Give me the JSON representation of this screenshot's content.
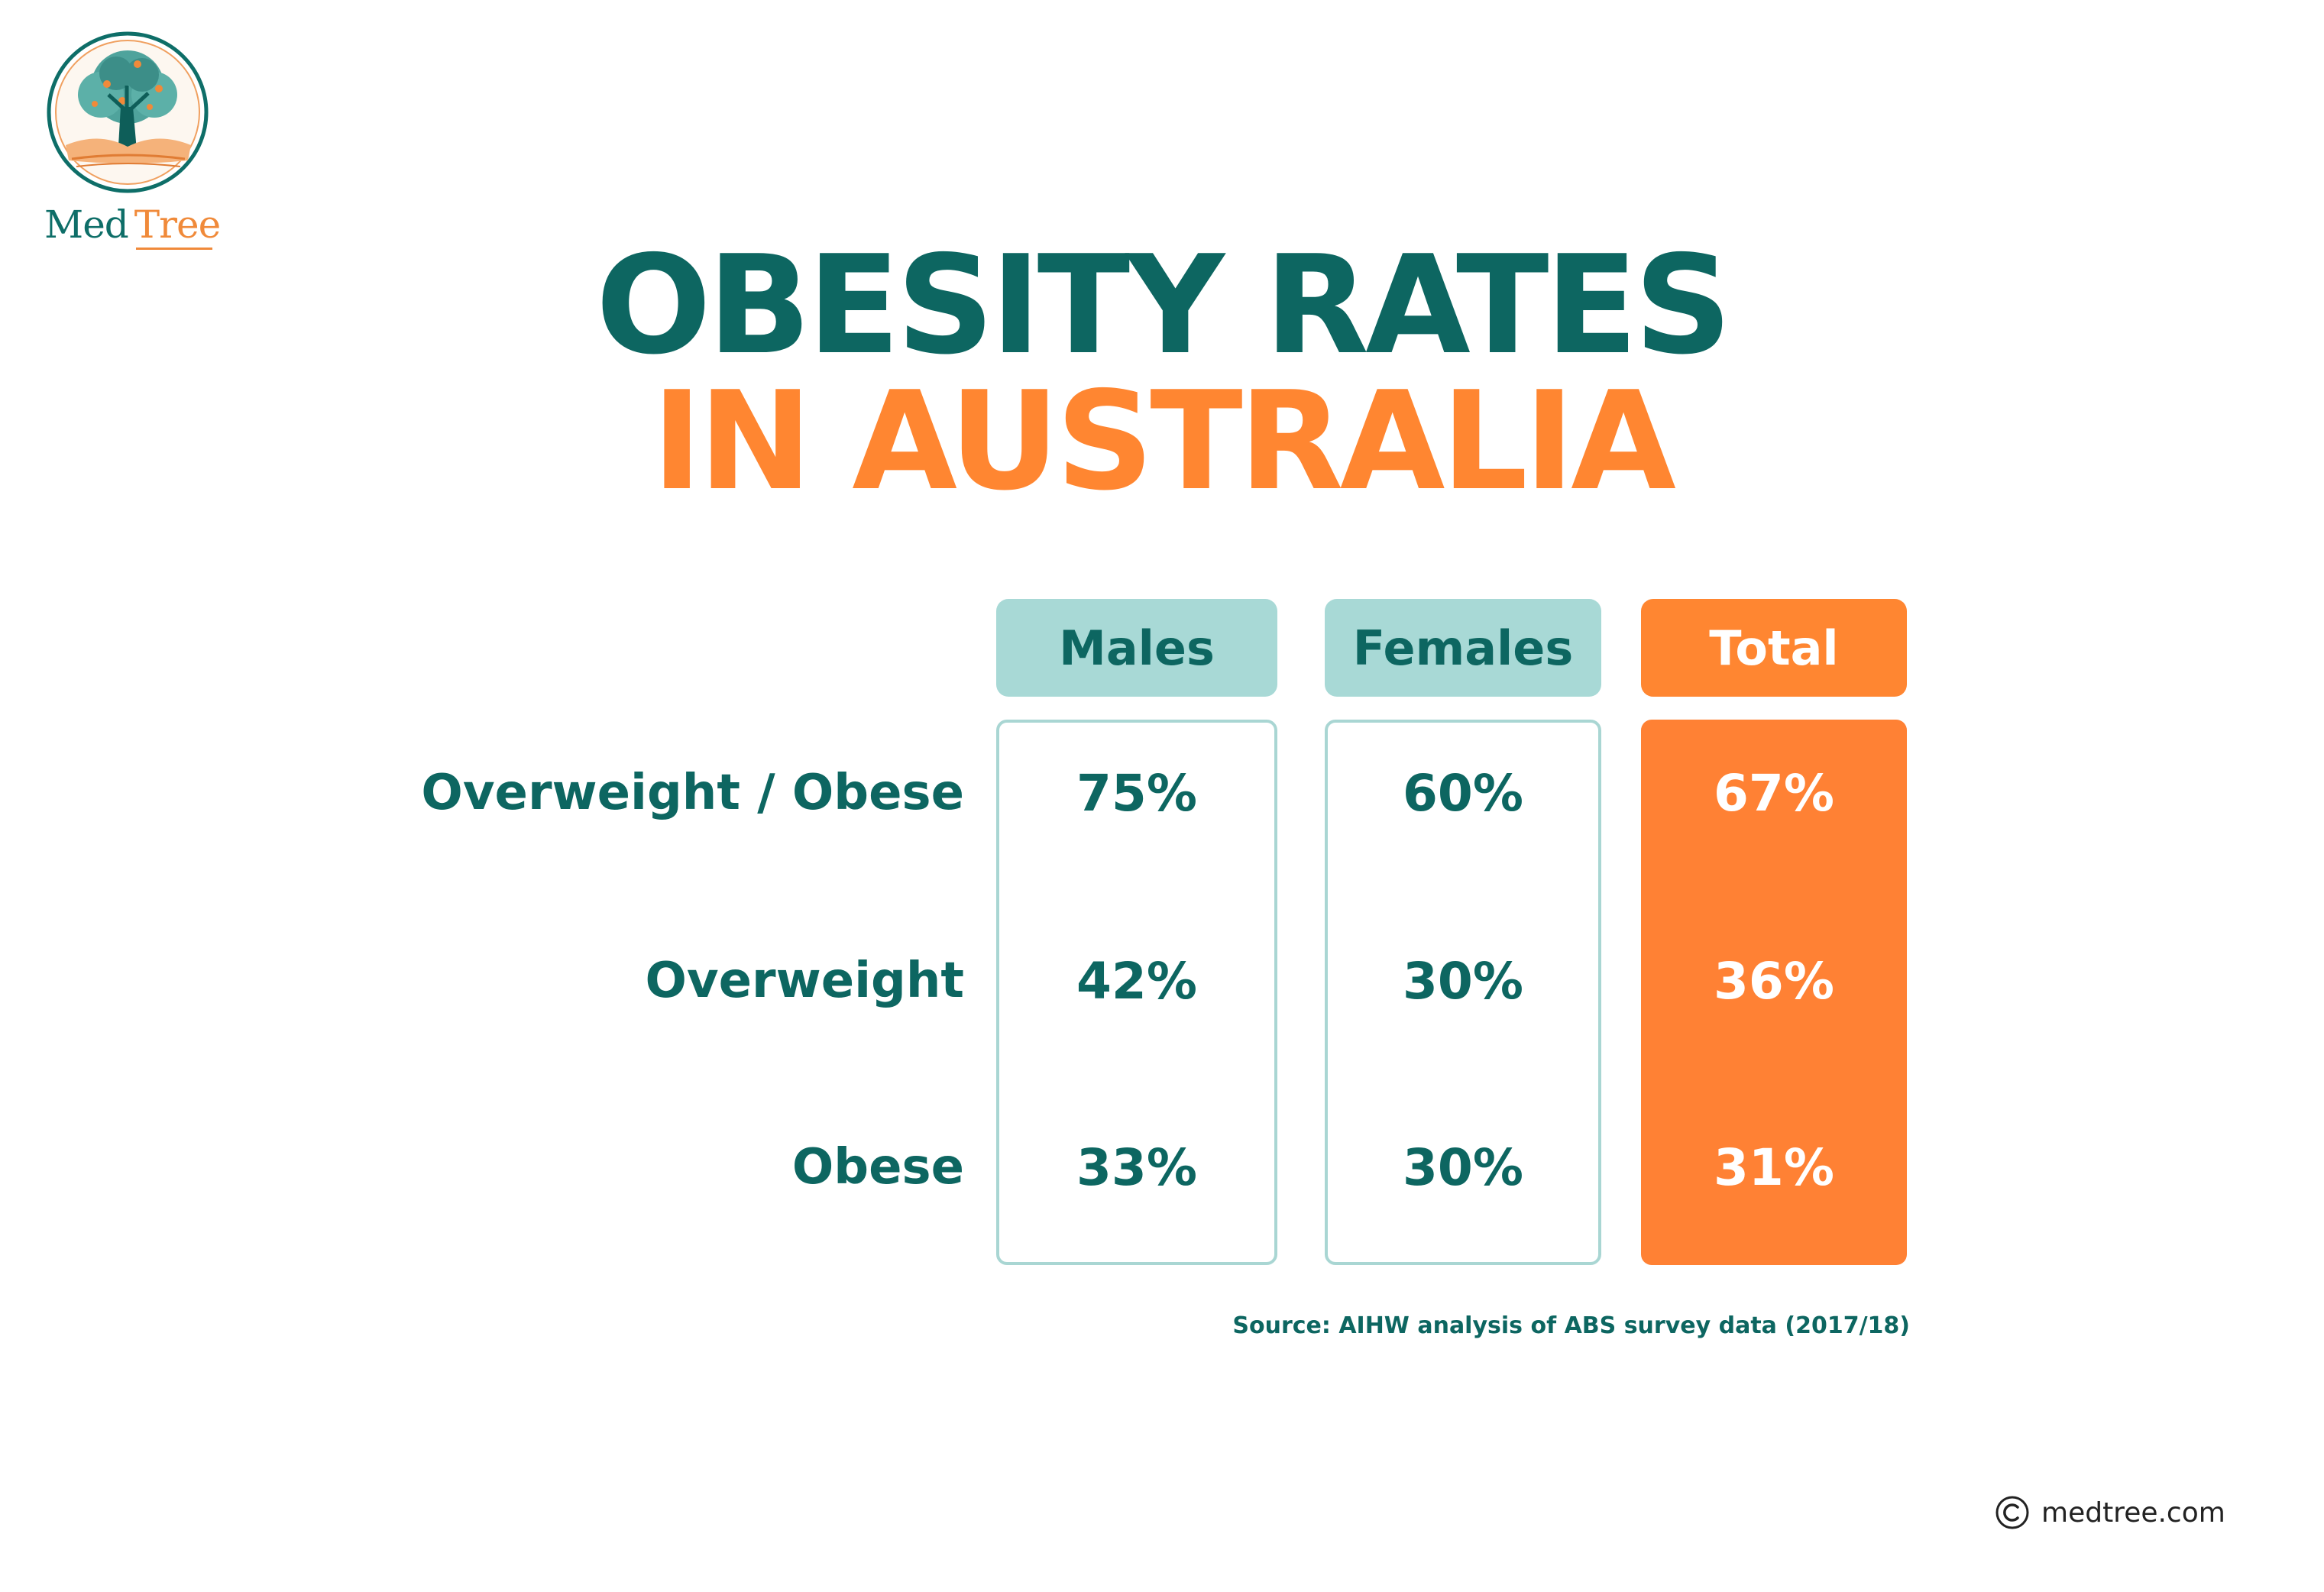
{
  "brand": {
    "name_part1": "Med",
    "name_part2": "Tree",
    "colors": {
      "teal": "#0d6661",
      "orange": "#ff8631",
      "light_teal": "#a8d9d6"
    }
  },
  "title": {
    "line1": "OBESITY RATES",
    "line2": "IN AUSTRALIA"
  },
  "chart_data": {
    "type": "table",
    "columns": [
      "Males",
      "Females",
      "Total"
    ],
    "rows": [
      {
        "label": "Overweight / Obese",
        "values": [
          "75%",
          "60%",
          "67%"
        ]
      },
      {
        "label": "Overweight",
        "values": [
          "42%",
          "30%",
          "36%"
        ]
      },
      {
        "label": "Obese",
        "values": [
          "33%",
          "30%",
          "31%"
        ]
      }
    ],
    "source": "Source: AIHW analysis of ABS survey data (2017/18)"
  },
  "footer": {
    "copyright_icon": "copyright-icon",
    "site": "medtree.com"
  }
}
